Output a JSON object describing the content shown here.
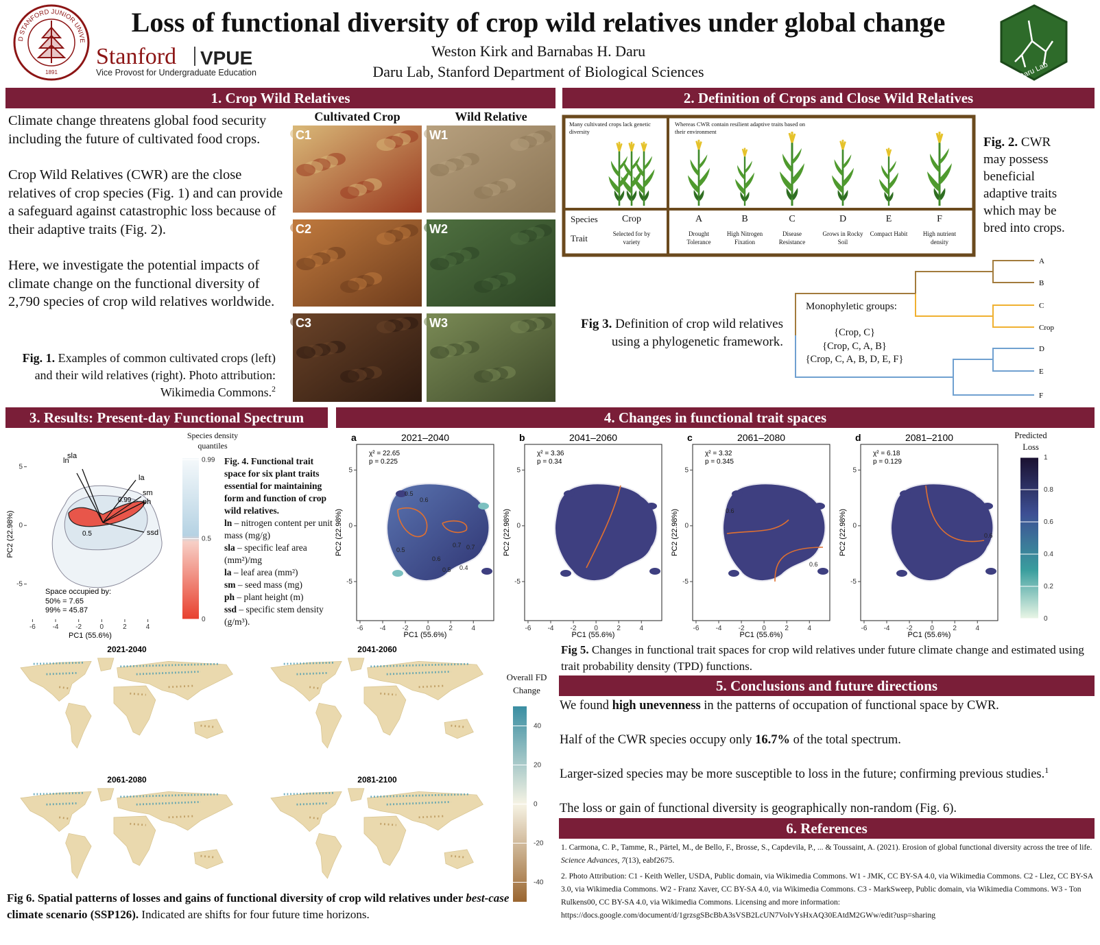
{
  "header": {
    "title": "Loss of functional diversity of crop wild relatives under global change",
    "authors": "Weston Kirk and Barnabas H. Daru",
    "affiliation": "Daru Lab, Stanford Department of Biological Sciences",
    "seal": {
      "text": "LELAND STANFORD JUNIOR UNIVERSITY",
      "year": "1891"
    },
    "stanford": "Stanford",
    "unit": "VPUE",
    "unit_subtitle": "Vice Provost for Undergraduate Education",
    "lab_logo": "Daru Lab"
  },
  "section1": {
    "heading": "1. Crop Wild Relatives",
    "paragraphs": [
      "Climate change threatens global food security including the future of cultivated food crops.",
      "Crop Wild Relatives (CWR) are the close relatives of crop species (Fig. 1) and can provide a safeguard against catastrophic loss because of their adaptive traits (Fig. 2).",
      "Here, we investigate the potential impacts of climate change on the functional diversity of 2,790 species of crop wild relatives worldwide."
    ],
    "columns": [
      "Cultivated Crop",
      "Wild Relative"
    ],
    "photos": [
      "C1",
      "W1",
      "C2",
      "W2",
      "C3",
      "W3"
    ],
    "caption": [
      {
        "t": "Fig. 1.",
        "b": true
      },
      {
        "t": " Examples of common cultivated crops (left) and their wild relatives (right). Photo attribution: Wikimedia Commons."
      },
      {
        "t": "2",
        "sup": true
      }
    ]
  },
  "section2": {
    "heading": "2. Definition of Crops and Close Wild Relatives",
    "left_note": "Many cultivated crops lack genetic diversity",
    "right_note": "Whereas CWR contain resilient adaptive traits based on their environment",
    "row_labels": [
      "Species",
      "Trait"
    ],
    "species": [
      {
        "name": "Crop",
        "trait": "Selected for by variety"
      },
      {
        "name": "A",
        "trait": "Drought Tolerance"
      },
      {
        "name": "B",
        "trait": "High Nitrogen Fixation"
      },
      {
        "name": "C",
        "trait": "Disease Resistance"
      },
      {
        "name": "D",
        "trait": "Grows in Rocky Soil"
      },
      {
        "name": "E",
        "trait": "Compact Habit"
      },
      {
        "name": "F",
        "trait": "High nutrient density"
      }
    ],
    "fig2_caption": [
      {
        "t": "Fig. 2.",
        "b": true
      },
      {
        "t": " CWR may possess beneficial adaptive traits which may be bred into crops."
      }
    ],
    "tree": {
      "tips": [
        "A",
        "B",
        "C",
        "Crop",
        "D",
        "E",
        "F"
      ],
      "box_title": "Monophyletic groups:",
      "groups": [
        "{Crop, C}",
        "{Crop, C, A, B}",
        "{Crop, C, A, B, D, E, F}"
      ]
    },
    "fig3_caption": [
      {
        "t": "Fig 3.",
        "b": true
      },
      {
        "t": " Definition of crop wild relatives using a phylogenetic framework."
      }
    ]
  },
  "section3": {
    "heading": "3. Results: Present-day Functional Spectrum",
    "plot": {
      "xlim": [
        -6.5,
        4.5
      ],
      "ylim": [
        -8,
        6.5
      ],
      "xticks": [
        -6,
        -4,
        -2,
        0,
        2,
        4
      ],
      "yticks": [
        -5,
        0,
        5
      ],
      "xlabel": "PC1 (55.6%)",
      "ylabel": "PC2 (22.98%)",
      "vectors": [
        "ln",
        "sla",
        "la",
        "sm",
        "ph",
        "ssd"
      ],
      "contour_labels": [
        "0.99",
        "0.5"
      ],
      "space_title": "Space occupied by:",
      "space_lines": [
        "50% = 7.65",
        "99% = 45.87"
      ]
    },
    "legend": {
      "title": "Species density quantiles",
      "lim": [
        0,
        1
      ],
      "ticks": [
        0.99,
        0.5,
        0
      ]
    },
    "caption": {
      "title": [
        {
          "t": "Fig. 4. Functional trait space for six plant traits essential for maintaining form and function of crop wild relatives.",
          "b": true
        }
      ],
      "traits": [
        [
          {
            "t": "ln",
            "b": true
          },
          {
            "t": " – nitrogen content per unit mass (mg/g)"
          }
        ],
        [
          {
            "t": "sla",
            "b": true
          },
          {
            "t": " – specific leaf area (mm²)/mg"
          }
        ],
        [
          {
            "t": "la",
            "b": true
          },
          {
            "t": " – leaf area (mm²)"
          }
        ],
        [
          {
            "t": "sm",
            "b": true
          },
          {
            "t": " – seed mass (mg)"
          }
        ],
        [
          {
            "t": "ph",
            "b": true
          },
          {
            "t": " – plant height (m)"
          }
        ],
        [
          {
            "t": "ssd",
            "b": true
          },
          {
            "t": " – specific stem density (g/m³)."
          }
        ]
      ]
    }
  },
  "section4": {
    "heading": "4. Changes in functional trait spaces",
    "xlim": [
      -6.3,
      5.8
    ],
    "ylim": [
      -8.5,
      7.3
    ],
    "xticks": [
      -6,
      -4,
      -2,
      0,
      2,
      4
    ],
    "yticks": [
      -5,
      0,
      5
    ],
    "xlabel": "PC1 (55.6%)",
    "ylabel": "PC2 (22.98%)",
    "panels": [
      {
        "letter": "a",
        "period": "2021–2040",
        "chi2": "χ² = 22.65",
        "p": "p = 0.225",
        "contour_labels": [
          "0.5",
          "0.6",
          "0.7",
          "0.7",
          "0.6",
          "0.5",
          "0.4",
          "0.5"
        ]
      },
      {
        "letter": "b",
        "period": "2041–2060",
        "chi2": "χ² = 3.36",
        "p": "p = 0.34"
      },
      {
        "letter": "c",
        "period": "2061–2080",
        "chi2": "χ² = 3.32",
        "p": "p = 0.345",
        "contour_labels": [
          "0.6",
          "0.6"
        ]
      },
      {
        "letter": "d",
        "period": "2081–2100",
        "chi2": "χ² = 6.18",
        "p": "p = 0.129",
        "contour_labels": [
          "0.6"
        ]
      }
    ],
    "legend": {
      "title": "Predicted Loss",
      "lim": [
        0,
        1
      ],
      "ticks": [
        1,
        0.8,
        0.6,
        0.4,
        0.2,
        0
      ]
    },
    "caption": [
      {
        "t": "Fig 5.",
        "b": true
      },
      {
        "t": " Changes in functional trait spaces for crop wild relatives under future climate change and estimated using trait probability density (TPD) functions."
      }
    ]
  },
  "maps": {
    "periods": [
      "2021-2040",
      "2041-2060",
      "2061-2080",
      "2081-2100"
    ],
    "legend": {
      "title": "Overall FD Change",
      "lim": [
        -50,
        50
      ],
      "ticks": [
        40,
        20,
        0,
        -20,
        -40
      ]
    },
    "caption": [
      {
        "t": "Fig 6. Spatial patterns of losses and gains of functional diversity of crop wild relatives under ",
        "b": true
      },
      {
        "t": "best-case",
        "b": true,
        "i": true
      },
      {
        "t": " climate scenario (SSP126).",
        "b": true
      },
      {
        "t": " Indicated are shifts for four future time horizons."
      }
    ]
  },
  "section5": {
    "heading": "5. Conclusions and future directions",
    "paragraphs": [
      [
        {
          "t": "We found "
        },
        {
          "t": "high unevenness",
          "b": true
        },
        {
          "t": " in the patterns of occupation of functional space by CWR."
        }
      ],
      [
        {
          "t": "Half of the CWR species occupy only "
        },
        {
          "t": "16.7%",
          "b": true
        },
        {
          "t": " of the total spectrum."
        }
      ],
      [
        {
          "t": "Larger-sized species may be more susceptible to loss in the future; confirming previous studies."
        },
        {
          "t": "1",
          "sup": true
        }
      ],
      [
        {
          "t": "The loss or gain of functional diversity is geographically non-random (Fig. 6)."
        }
      ]
    ]
  },
  "section6": {
    "heading": "6. References",
    "items": [
      [
        {
          "t": "1. Carmona, C. P., Tamme, R., Pärtel, M., de Bello, F., Brosse, S., Capdevila, P., ... & Toussaint, A. (2021). Erosion of global functional diversity across the tree of life. "
        },
        {
          "t": "Science Advances, 7",
          "i": true
        },
        {
          "t": "(13), eabf2675."
        }
      ],
      [
        {
          "t": "2. Photo Attribution: C1 - Keith Weller, USDA, Public domain, via Wikimedia Commons. W1 - JMK, CC BY-SA 4.0, via Wikimedia Commons. C2 - Llez, CC BY-SA 3.0, via Wikimedia Commons. W2 - Franz Xaver, CC BY-SA 4.0, via Wikimedia Commons. C3 - MarkSweep, Public domain, via Wikimedia Commons. W3 - Ton Rulkens00, CC BY-SA 4.0, via Wikimedia Commons. Licensing and more  information: https://docs.google.com/document/d/1grzsgSBcBbA3sVSB2LcUN7VoIvYsHxAQ30EAtdM2GWw/edit?usp=sharing"
        }
      ]
    ]
  }
}
